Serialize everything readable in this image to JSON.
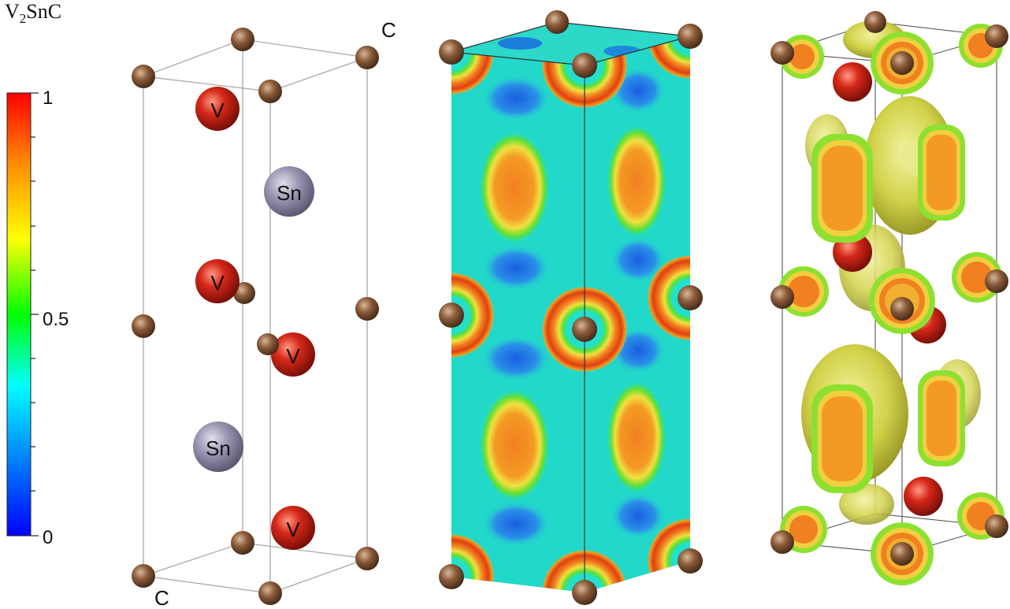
{
  "title": {
    "main": "V",
    "sub": "2",
    "rest": "SnC"
  },
  "colorbar": {
    "ticks": [
      "1",
      "0.5",
      "0"
    ],
    "colors": [
      "#ff0000",
      "#ff8c00",
      "#ffff00",
      "#00ff00",
      "#00ffff",
      "#0080ff",
      "#0000ff"
    ]
  },
  "structure": {
    "corner_labels": [
      "C",
      "C"
    ],
    "atoms": {
      "v": "V",
      "sn": "Sn"
    }
  },
  "colors": {
    "carbon": "#7a5133",
    "vanadium": "#c21e12",
    "tin": "#8c8aa6",
    "field_low": "#1a66e0",
    "field_mid": "#22e0cc",
    "field_high": "#f08020",
    "isosurface": "#c8c840"
  }
}
